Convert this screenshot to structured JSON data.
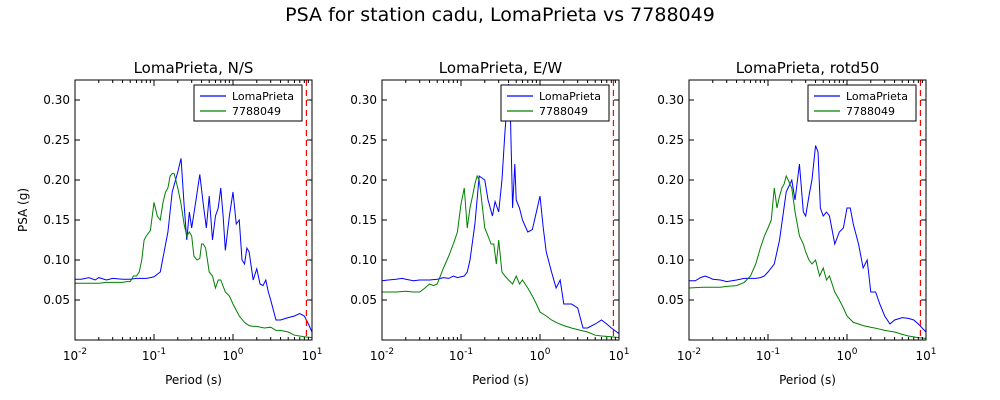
{
  "figure": {
    "title": "PSA for station cadu, LomaPrieta vs 7788049"
  },
  "colors": {
    "series_1": "#0000ff",
    "series_2": "#008000",
    "marker_line": "#ff0000",
    "axes": "#000000",
    "background": "#ffffff"
  },
  "chart_data": [
    {
      "type": "line",
      "title": "LomaPrieta, N/S",
      "xlabel": "Period (s)",
      "ylabel": "PSA (g)",
      "xscale": "log",
      "xlim": [
        0.01,
        10
      ],
      "ylim": [
        0.0,
        0.325
      ],
      "xticks": [
        "10^-2",
        "10^-1",
        "10^0",
        "10^1"
      ],
      "yticks": [
        "0.05",
        "0.10",
        "0.15",
        "0.20",
        "0.25",
        "0.30"
      ],
      "grid": false,
      "legend_position": "top-right",
      "vertical_marker": {
        "x": 8.5,
        "style": "dashed",
        "color": "#ff0000"
      },
      "series": [
        {
          "name": "LomaPrieta",
          "color": "#0000ff",
          "x": [
            0.01,
            0.012,
            0.015,
            0.018,
            0.02,
            0.025,
            0.03,
            0.04,
            0.05,
            0.06,
            0.07,
            0.08,
            0.09,
            0.1,
            0.12,
            0.15,
            0.17,
            0.2,
            0.22,
            0.24,
            0.26,
            0.28,
            0.3,
            0.34,
            0.38,
            0.42,
            0.46,
            0.5,
            0.55,
            0.6,
            0.65,
            0.7,
            0.75,
            0.8,
            0.9,
            1.0,
            1.1,
            1.2,
            1.3,
            1.4,
            1.5,
            1.6,
            1.8,
            2.0,
            2.2,
            2.4,
            2.6,
            2.8,
            3.0,
            3.5,
            4.0,
            5.0,
            6.0,
            7.0,
            8.0,
            9.0,
            10.0
          ],
          "y": [
            0.076,
            0.076,
            0.078,
            0.075,
            0.078,
            0.075,
            0.077,
            0.076,
            0.076,
            0.077,
            0.077,
            0.077,
            0.078,
            0.079,
            0.085,
            0.135,
            0.185,
            0.21,
            0.227,
            0.17,
            0.125,
            0.16,
            0.14,
            0.175,
            0.207,
            0.17,
            0.14,
            0.18,
            0.125,
            0.155,
            0.165,
            0.19,
            0.155,
            0.112,
            0.155,
            0.185,
            0.145,
            0.15,
            0.1,
            0.095,
            0.115,
            0.11,
            0.075,
            0.089,
            0.07,
            0.068,
            0.075,
            0.06,
            0.05,
            0.025,
            0.025,
            0.028,
            0.03,
            0.033,
            0.03,
            0.02,
            0.01
          ]
        },
        {
          "name": "7788049",
          "color": "#008000",
          "x": [
            0.01,
            0.015,
            0.02,
            0.025,
            0.03,
            0.035,
            0.04,
            0.045,
            0.05,
            0.055,
            0.06,
            0.065,
            0.07,
            0.075,
            0.08,
            0.09,
            0.1,
            0.11,
            0.12,
            0.13,
            0.14,
            0.15,
            0.16,
            0.17,
            0.18,
            0.2,
            0.22,
            0.24,
            0.26,
            0.28,
            0.3,
            0.32,
            0.35,
            0.38,
            0.4,
            0.42,
            0.45,
            0.5,
            0.55,
            0.6,
            0.65,
            0.7,
            0.8,
            0.9,
            1.0,
            1.2,
            1.4,
            1.6,
            1.8,
            2.0,
            2.5,
            3.0,
            3.5,
            4.0,
            5.0,
            6.0,
            8.0,
            10.0
          ],
          "y": [
            0.071,
            0.071,
            0.071,
            0.072,
            0.072,
            0.072,
            0.072,
            0.073,
            0.073,
            0.08,
            0.08,
            0.085,
            0.1,
            0.125,
            0.13,
            0.137,
            0.172,
            0.155,
            0.15,
            0.172,
            0.185,
            0.19,
            0.205,
            0.208,
            0.208,
            0.19,
            0.17,
            0.145,
            0.13,
            0.135,
            0.13,
            0.105,
            0.1,
            0.102,
            0.12,
            0.12,
            0.115,
            0.085,
            0.08,
            0.065,
            0.075,
            0.075,
            0.06,
            0.055,
            0.045,
            0.03,
            0.022,
            0.018,
            0.017,
            0.017,
            0.015,
            0.016,
            0.012,
            0.012,
            0.01,
            0.006,
            0.004,
            0.003
          ]
        }
      ]
    },
    {
      "type": "line",
      "title": "LomaPrieta, E/W",
      "xlabel": "Period (s)",
      "ylabel": "",
      "xscale": "log",
      "xlim": [
        0.01,
        10
      ],
      "ylim": [
        0.0,
        0.325
      ],
      "xticks": [
        "10^-2",
        "10^-1",
        "10^0",
        "10^1"
      ],
      "yticks": [
        "0.05",
        "0.10",
        "0.15",
        "0.20",
        "0.25",
        "0.30"
      ],
      "grid": false,
      "legend_position": "top-right",
      "vertical_marker": {
        "x": 8.5,
        "style": "dashed",
        "color": "#ff0000"
      },
      "series": [
        {
          "name": "LomaPrieta",
          "color": "#0000ff",
          "x": [
            0.01,
            0.012,
            0.015,
            0.018,
            0.02,
            0.025,
            0.03,
            0.04,
            0.05,
            0.06,
            0.07,
            0.08,
            0.09,
            0.1,
            0.11,
            0.12,
            0.13,
            0.15,
            0.17,
            0.2,
            0.22,
            0.25,
            0.27,
            0.3,
            0.33,
            0.36,
            0.4,
            0.42,
            0.45,
            0.48,
            0.5,
            0.55,
            0.6,
            0.7,
            0.8,
            0.9,
            1.0,
            1.1,
            1.2,
            1.4,
            1.6,
            1.8,
            2.0,
            2.5,
            3.0,
            3.5,
            4.0,
            5.0,
            6.0,
            7.0,
            8.0,
            10.0
          ],
          "y": [
            0.074,
            0.075,
            0.076,
            0.077,
            0.076,
            0.074,
            0.075,
            0.075,
            0.076,
            0.078,
            0.077,
            0.08,
            0.078,
            0.079,
            0.08,
            0.085,
            0.1,
            0.145,
            0.205,
            0.2,
            0.175,
            0.155,
            0.173,
            0.16,
            0.2,
            0.26,
            0.32,
            0.29,
            0.165,
            0.22,
            0.175,
            0.165,
            0.15,
            0.135,
            0.138,
            0.16,
            0.18,
            0.14,
            0.11,
            0.085,
            0.065,
            0.075,
            0.045,
            0.045,
            0.04,
            0.015,
            0.015,
            0.02,
            0.025,
            0.02,
            0.015,
            0.008
          ]
        },
        {
          "name": "7788049",
          "color": "#008000",
          "x": [
            0.01,
            0.015,
            0.02,
            0.025,
            0.03,
            0.035,
            0.04,
            0.045,
            0.05,
            0.06,
            0.07,
            0.08,
            0.09,
            0.1,
            0.11,
            0.12,
            0.13,
            0.14,
            0.15,
            0.16,
            0.17,
            0.18,
            0.2,
            0.22,
            0.24,
            0.26,
            0.28,
            0.3,
            0.33,
            0.36,
            0.4,
            0.45,
            0.5,
            0.55,
            0.6,
            0.7,
            0.8,
            0.9,
            1.0,
            1.2,
            1.4,
            1.6,
            2.0,
            2.5,
            3.0,
            4.0,
            5.0,
            6.0,
            8.0,
            10.0
          ],
          "y": [
            0.06,
            0.06,
            0.061,
            0.06,
            0.06,
            0.065,
            0.07,
            0.068,
            0.07,
            0.09,
            0.105,
            0.12,
            0.135,
            0.17,
            0.19,
            0.14,
            0.165,
            0.18,
            0.195,
            0.205,
            0.2,
            0.18,
            0.14,
            0.13,
            0.12,
            0.12,
            0.095,
            0.125,
            0.085,
            0.08,
            0.075,
            0.07,
            0.08,
            0.07,
            0.075,
            0.065,
            0.055,
            0.045,
            0.035,
            0.03,
            0.025,
            0.022,
            0.018,
            0.015,
            0.013,
            0.01,
            0.006,
            0.005,
            0.004,
            0.003
          ]
        }
      ]
    },
    {
      "type": "line",
      "title": "LomaPrieta, rotd50",
      "xlabel": "Period (s)",
      "ylabel": "",
      "xscale": "log",
      "xlim": [
        0.01,
        10
      ],
      "ylim": [
        0.0,
        0.325
      ],
      "xticks": [
        "10^-2",
        "10^-1",
        "10^0",
        "10^1"
      ],
      "yticks": [
        "0.05",
        "0.10",
        "0.15",
        "0.20",
        "0.25",
        "0.30"
      ],
      "grid": false,
      "legend_position": "top-right",
      "vertical_marker": {
        "x": 8.5,
        "style": "dashed",
        "color": "#ff0000"
      },
      "series": [
        {
          "name": "LomaPrieta",
          "color": "#0000ff",
          "x": [
            0.01,
            0.012,
            0.014,
            0.016,
            0.018,
            0.02,
            0.025,
            0.03,
            0.04,
            0.05,
            0.06,
            0.07,
            0.08,
            0.09,
            0.1,
            0.12,
            0.14,
            0.17,
            0.2,
            0.22,
            0.25,
            0.28,
            0.3,
            0.33,
            0.36,
            0.4,
            0.43,
            0.46,
            0.5,
            0.55,
            0.6,
            0.7,
            0.8,
            0.9,
            1.0,
            1.1,
            1.2,
            1.4,
            1.6,
            1.8,
            2.0,
            2.3,
            2.6,
            3.0,
            3.5,
            4.0,
            5.0,
            6.0,
            7.0,
            8.0,
            10.0
          ],
          "y": [
            0.074,
            0.074,
            0.078,
            0.08,
            0.078,
            0.076,
            0.075,
            0.073,
            0.075,
            0.077,
            0.077,
            0.077,
            0.078,
            0.08,
            0.085,
            0.095,
            0.125,
            0.185,
            0.2,
            0.175,
            0.22,
            0.16,
            0.155,
            0.18,
            0.2,
            0.243,
            0.235,
            0.165,
            0.155,
            0.16,
            0.155,
            0.12,
            0.135,
            0.14,
            0.165,
            0.165,
            0.145,
            0.12,
            0.09,
            0.1,
            0.06,
            0.06,
            0.045,
            0.03,
            0.02,
            0.025,
            0.028,
            0.027,
            0.025,
            0.02,
            0.01
          ]
        },
        {
          "name": "7788049",
          "color": "#008000",
          "x": [
            0.01,
            0.015,
            0.02,
            0.025,
            0.03,
            0.04,
            0.05,
            0.06,
            0.07,
            0.08,
            0.09,
            0.1,
            0.11,
            0.12,
            0.13,
            0.14,
            0.15,
            0.16,
            0.17,
            0.18,
            0.2,
            0.22,
            0.25,
            0.28,
            0.3,
            0.33,
            0.36,
            0.4,
            0.45,
            0.5,
            0.55,
            0.6,
            0.7,
            0.8,
            0.9,
            1.0,
            1.2,
            1.4,
            1.6,
            2.0,
            2.5,
            3.0,
            4.0,
            5.0,
            6.0,
            8.0,
            10.0
          ],
          "y": [
            0.065,
            0.066,
            0.066,
            0.066,
            0.067,
            0.068,
            0.072,
            0.08,
            0.095,
            0.115,
            0.13,
            0.14,
            0.15,
            0.19,
            0.165,
            0.18,
            0.19,
            0.195,
            0.205,
            0.2,
            0.19,
            0.16,
            0.13,
            0.12,
            0.11,
            0.1,
            0.095,
            0.1,
            0.08,
            0.09,
            0.075,
            0.08,
            0.06,
            0.05,
            0.04,
            0.03,
            0.022,
            0.02,
            0.018,
            0.016,
            0.014,
            0.012,
            0.01,
            0.007,
            0.005,
            0.003,
            0.002
          ]
        }
      ]
    }
  ]
}
